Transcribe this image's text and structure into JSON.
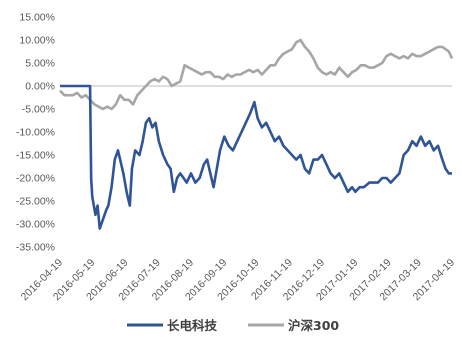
{
  "chart_data": {
    "type": "line",
    "title": "",
    "xlabel": "",
    "ylabel": "",
    "ylim": [
      -35,
      15
    ],
    "ytick_values": [
      15,
      10,
      5,
      0,
      -5,
      -10,
      -15,
      -20,
      -25,
      -30,
      -35
    ],
    "ytick_labels": [
      "15.00%",
      "10.00%",
      "5.00%",
      "0.00%",
      "-5.00%",
      "-10.00%",
      "-15.00%",
      "-20.00%",
      "-25.00%",
      "-30.00%",
      "-35.00%"
    ],
    "xtick_labels": [
      "2016-04-19",
      "2016-05-19",
      "2016-06-19",
      "2016-07-19",
      "2016-08-19",
      "2016-09-19",
      "2016-10-19",
      "2016-11-19",
      "2016-12-19",
      "2017-01-19",
      "2017-02-19",
      "2017-03-19",
      "2017-04-19"
    ],
    "grid": false,
    "legend_position": "bottom",
    "series": [
      {
        "name": "长电科技",
        "color": "#2f5597",
        "points": [
          [
            "2016-04-19",
            0
          ],
          [
            "2016-05-10",
            0
          ],
          [
            "2016-05-17",
            0
          ],
          [
            "2016-05-18",
            -20
          ],
          [
            "2016-05-19",
            -24
          ],
          [
            "2016-05-22",
            -28
          ],
          [
            "2016-05-24",
            -26
          ],
          [
            "2016-05-26",
            -31
          ],
          [
            "2016-05-29",
            -29
          ],
          [
            "2016-06-01",
            -27
          ],
          [
            "2016-06-03",
            -26
          ],
          [
            "2016-06-06",
            -22
          ],
          [
            "2016-06-09",
            -16
          ],
          [
            "2016-06-12",
            -14
          ],
          [
            "2016-06-14",
            -16
          ],
          [
            "2016-06-17",
            -19
          ],
          [
            "2016-06-20",
            -23
          ],
          [
            "2016-06-23",
            -26
          ],
          [
            "2016-06-25",
            -18
          ],
          [
            "2016-06-28",
            -14
          ],
          [
            "2016-07-02",
            -15
          ],
          [
            "2016-07-05",
            -12
          ],
          [
            "2016-07-08",
            -8
          ],
          [
            "2016-07-11",
            -7
          ],
          [
            "2016-07-14",
            -9
          ],
          [
            "2016-07-17",
            -8
          ],
          [
            "2016-07-20",
            -12
          ],
          [
            "2016-07-24",
            -15
          ],
          [
            "2016-07-28",
            -17
          ],
          [
            "2016-07-31",
            -18
          ],
          [
            "2016-08-03",
            -23
          ],
          [
            "2016-08-06",
            -20
          ],
          [
            "2016-08-09",
            -19
          ],
          [
            "2016-08-12",
            -20
          ],
          [
            "2016-08-15",
            -21
          ],
          [
            "2016-08-19",
            -19
          ],
          [
            "2016-08-23",
            -21
          ],
          [
            "2016-08-27",
            -20
          ],
          [
            "2016-08-31",
            -17
          ],
          [
            "2016-09-03",
            -16
          ],
          [
            "2016-09-06",
            -19
          ],
          [
            "2016-09-09",
            -22
          ],
          [
            "2016-09-12",
            -18
          ],
          [
            "2016-09-15",
            -14
          ],
          [
            "2016-09-19",
            -11
          ],
          [
            "2016-09-23",
            -13
          ],
          [
            "2016-09-27",
            -14
          ],
          [
            "2016-10-01",
            -12
          ],
          [
            "2016-10-05",
            -10
          ],
          [
            "2016-10-09",
            -8
          ],
          [
            "2016-10-13",
            -6
          ],
          [
            "2016-10-17",
            -3.5
          ],
          [
            "2016-10-20",
            -7
          ],
          [
            "2016-10-24",
            -9
          ],
          [
            "2016-10-28",
            -8
          ],
          [
            "2016-11-01",
            -10
          ],
          [
            "2016-11-05",
            -12
          ],
          [
            "2016-11-09",
            -11
          ],
          [
            "2016-11-13",
            -13
          ],
          [
            "2016-11-17",
            -14
          ],
          [
            "2016-11-21",
            -15
          ],
          [
            "2016-11-25",
            -16
          ],
          [
            "2016-11-29",
            -15
          ],
          [
            "2016-12-03",
            -18
          ],
          [
            "2016-12-07",
            -19
          ],
          [
            "2016-12-11",
            -16
          ],
          [
            "2016-12-15",
            -16
          ],
          [
            "2016-12-19",
            -15
          ],
          [
            "2016-12-23",
            -17
          ],
          [
            "2016-12-27",
            -19
          ],
          [
            "2016-12-31",
            -20
          ],
          [
            "2017-01-04",
            -19
          ],
          [
            "2017-01-08",
            -21
          ],
          [
            "2017-01-12",
            -23
          ],
          [
            "2017-01-16",
            -22
          ],
          [
            "2017-01-19",
            -23
          ],
          [
            "2017-01-23",
            -22
          ],
          [
            "2017-01-27",
            -22
          ],
          [
            "2017-02-01",
            -21
          ],
          [
            "2017-02-05",
            -21
          ],
          [
            "2017-02-09",
            -21
          ],
          [
            "2017-02-13",
            -20
          ],
          [
            "2017-02-17",
            -20
          ],
          [
            "2017-02-21",
            -21
          ],
          [
            "2017-02-25",
            -20
          ],
          [
            "2017-03-01",
            -19
          ],
          [
            "2017-03-05",
            -15
          ],
          [
            "2017-03-09",
            -14
          ],
          [
            "2017-03-13",
            -12
          ],
          [
            "2017-03-17",
            -13
          ],
          [
            "2017-03-21",
            -11
          ],
          [
            "2017-03-25",
            -13
          ],
          [
            "2017-03-29",
            -12
          ],
          [
            "2017-04-02",
            -14
          ],
          [
            "2017-04-06",
            -13
          ],
          [
            "2017-04-10",
            -16
          ],
          [
            "2017-04-13",
            -18
          ],
          [
            "2017-04-16",
            -19
          ],
          [
            "2017-04-19",
            -19
          ]
        ]
      },
      {
        "name": "沪深300",
        "color": "#a6a6a6",
        "points": [
          [
            "2016-04-19",
            -1
          ],
          [
            "2016-04-23",
            -2
          ],
          [
            "2016-04-27",
            -2
          ],
          [
            "2016-05-01",
            -2
          ],
          [
            "2016-05-05",
            -1.5
          ],
          [
            "2016-05-09",
            -2.5
          ],
          [
            "2016-05-13",
            -2
          ],
          [
            "2016-05-17",
            -3
          ],
          [
            "2016-05-21",
            -4
          ],
          [
            "2016-05-25",
            -4.5
          ],
          [
            "2016-05-29",
            -5
          ],
          [
            "2016-06-02",
            -4.5
          ],
          [
            "2016-06-06",
            -5
          ],
          [
            "2016-06-10",
            -4
          ],
          [
            "2016-06-14",
            -2
          ],
          [
            "2016-06-18",
            -3
          ],
          [
            "2016-06-22",
            -3
          ],
          [
            "2016-06-26",
            -4
          ],
          [
            "2016-06-30",
            -2
          ],
          [
            "2016-07-04",
            -1
          ],
          [
            "2016-07-08",
            0
          ],
          [
            "2016-07-12",
            1
          ],
          [
            "2016-07-16",
            1.5
          ],
          [
            "2016-07-20",
            1
          ],
          [
            "2016-07-24",
            2
          ],
          [
            "2016-07-28",
            1.5
          ],
          [
            "2016-08-01",
            0
          ],
          [
            "2016-08-05",
            0.5
          ],
          [
            "2016-08-09",
            1
          ],
          [
            "2016-08-13",
            4.5
          ],
          [
            "2016-08-17",
            4
          ],
          [
            "2016-08-21",
            3.5
          ],
          [
            "2016-08-25",
            3
          ],
          [
            "2016-08-29",
            2.5
          ],
          [
            "2016-09-02",
            3
          ],
          [
            "2016-09-06",
            3
          ],
          [
            "2016-09-10",
            2
          ],
          [
            "2016-09-14",
            2
          ],
          [
            "2016-09-18",
            1.5
          ],
          [
            "2016-09-22",
            2.5
          ],
          [
            "2016-09-26",
            2
          ],
          [
            "2016-09-30",
            2.5
          ],
          [
            "2016-10-04",
            2.5
          ],
          [
            "2016-10-08",
            3
          ],
          [
            "2016-10-12",
            3.5
          ],
          [
            "2016-10-16",
            3
          ],
          [
            "2016-10-20",
            3.5
          ],
          [
            "2016-10-24",
            2.5
          ],
          [
            "2016-10-28",
            3.5
          ],
          [
            "2016-11-01",
            4.5
          ],
          [
            "2016-11-05",
            4.5
          ],
          [
            "2016-11-09",
            6
          ],
          [
            "2016-11-13",
            7
          ],
          [
            "2016-11-17",
            7.5
          ],
          [
            "2016-11-21",
            8
          ],
          [
            "2016-11-25",
            9.5
          ],
          [
            "2016-11-29",
            10
          ],
          [
            "2016-12-03",
            8.5
          ],
          [
            "2016-12-07",
            7.5
          ],
          [
            "2016-12-11",
            6
          ],
          [
            "2016-12-15",
            4
          ],
          [
            "2016-12-19",
            3
          ],
          [
            "2016-12-23",
            2.5
          ],
          [
            "2016-12-27",
            3
          ],
          [
            "2016-12-31",
            2.5
          ],
          [
            "2017-01-04",
            4
          ],
          [
            "2017-01-08",
            3
          ],
          [
            "2017-01-12",
            2
          ],
          [
            "2017-01-16",
            3
          ],
          [
            "2017-01-20",
            3.5
          ],
          [
            "2017-01-24",
            4.5
          ],
          [
            "2017-01-28",
            4.5
          ],
          [
            "2017-02-01",
            4
          ],
          [
            "2017-02-05",
            4
          ],
          [
            "2017-02-09",
            4.5
          ],
          [
            "2017-02-13",
            5
          ],
          [
            "2017-02-17",
            6.5
          ],
          [
            "2017-02-21",
            7
          ],
          [
            "2017-02-25",
            6.5
          ],
          [
            "2017-03-01",
            6
          ],
          [
            "2017-03-05",
            6.5
          ],
          [
            "2017-03-09",
            6
          ],
          [
            "2017-03-13",
            7
          ],
          [
            "2017-03-17",
            6.5
          ],
          [
            "2017-03-21",
            6.5
          ],
          [
            "2017-03-25",
            7
          ],
          [
            "2017-03-29",
            7.5
          ],
          [
            "2017-04-02",
            8
          ],
          [
            "2017-04-06",
            8.5
          ],
          [
            "2017-04-10",
            8.5
          ],
          [
            "2017-04-13",
            8
          ],
          [
            "2017-04-16",
            7.5
          ],
          [
            "2017-04-19",
            6
          ]
        ]
      }
    ]
  }
}
